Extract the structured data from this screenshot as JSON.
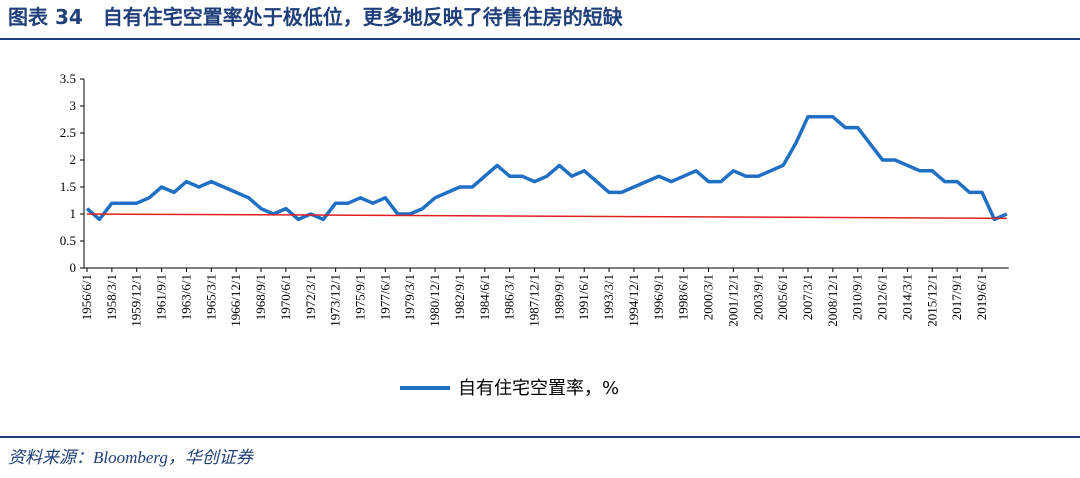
{
  "chart_data": {
    "type": "line",
    "title": "图表 34　自有住宅空置率处于极低位，更多地反映了待售住房的短缺",
    "source": "资料来源：Bloomberg，华创证券",
    "categories": [
      "1956/6/1",
      null,
      "1958/3/1",
      null,
      "1959/12/1",
      null,
      "1961/9/1",
      null,
      "1963/6/1",
      null,
      "1965/3/1",
      null,
      "1966/12/1",
      null,
      "1968/9/1",
      null,
      "1970/6/1",
      null,
      "1972/3/1",
      null,
      "1973/12/1",
      null,
      "1975/9/1",
      null,
      "1977/6/1",
      null,
      "1979/3/1",
      null,
      "1980/12/1",
      null,
      "1982/9/1",
      null,
      "1984/6/1",
      null,
      "1986/3/1",
      null,
      "1987/12/1",
      null,
      "1989/9/1",
      null,
      "1991/6/1",
      null,
      "1993/3/1",
      null,
      "1994/12/1",
      null,
      "1996/9/1",
      null,
      "1998/6/1",
      null,
      "2000/3/1",
      null,
      "2001/12/1",
      null,
      "2003/9/1",
      null,
      "2005/6/1",
      null,
      "2007/3/1",
      null,
      "2008/12/1",
      null,
      "2010/9/1",
      null,
      "2012/6/1",
      null,
      "2014/3/1",
      null,
      "2015/12/1",
      null,
      "2017/9/1",
      null,
      "2019/6/1",
      null,
      null
    ],
    "series": [
      {
        "name": "自有住宅空置率，%",
        "color": "#1f6fc5",
        "values": [
          1.1,
          0.9,
          1.2,
          1.2,
          1.2,
          1.3,
          1.5,
          1.4,
          1.6,
          1.5,
          1.6,
          1.5,
          1.4,
          1.3,
          1.1,
          1.0,
          1.1,
          0.9,
          1.0,
          0.9,
          1.2,
          1.2,
          1.3,
          1.2,
          1.3,
          1.0,
          1.0,
          1.1,
          1.3,
          1.4,
          1.5,
          1.5,
          1.7,
          1.9,
          1.7,
          1.7,
          1.6,
          1.7,
          1.9,
          1.7,
          1.8,
          1.6,
          1.4,
          1.4,
          1.5,
          1.6,
          1.7,
          1.6,
          1.7,
          1.8,
          1.6,
          1.6,
          1.8,
          1.7,
          1.7,
          1.8,
          1.9,
          2.3,
          2.8,
          2.8,
          2.8,
          2.6,
          2.6,
          2.3,
          2.0,
          2.0,
          1.9,
          1.8,
          1.8,
          1.6,
          1.6,
          1.4,
          1.4,
          0.9,
          1.0
        ]
      }
    ],
    "trend": {
      "color": "#e02020",
      "values": [
        1.0,
        0.92
      ]
    },
    "ylim": [
      0,
      3.5
    ],
    "yticks": [
      0,
      0.5,
      1,
      1.5,
      2,
      2.5,
      3,
      3.5
    ],
    "legend": "bottom"
  }
}
